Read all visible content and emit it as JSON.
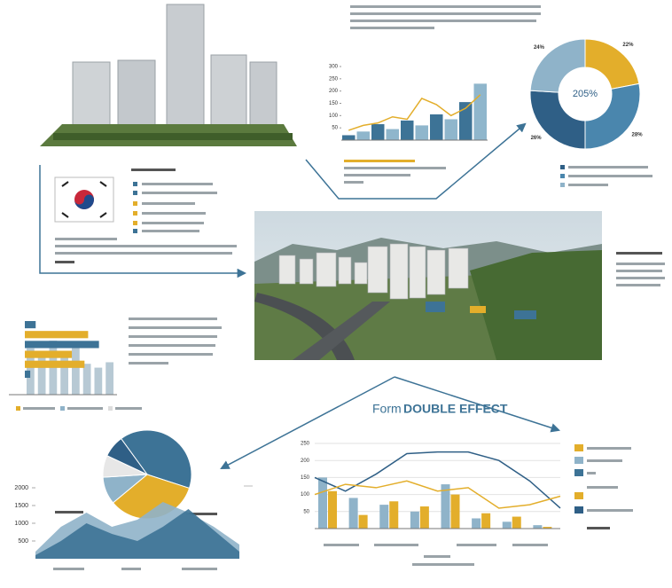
{
  "title_prefix": "Form",
  "title": "DOUBLE EFFECT",
  "top_chart": {
    "ylim": [
      0,
      300
    ],
    "yticks": [
      50,
      100,
      150,
      200,
      250,
      300
    ],
    "bars": [
      20,
      35,
      65,
      45,
      80,
      60,
      105,
      85,
      155,
      230
    ],
    "bar_colors": [
      "#3d7396",
      "#8fb6cc"
    ],
    "line": [
      40,
      60,
      70,
      95,
      85,
      170,
      145,
      100,
      130,
      185
    ],
    "line_color": "#e3ae2b"
  },
  "donut": {
    "center_label": "205%",
    "values": [
      22,
      28,
      26,
      24
    ],
    "value_labels": [
      "22%",
      "28%",
      "26%",
      "24%"
    ],
    "colors": [
      "#e3ae2b",
      "#4a86ad",
      "#2f5f86",
      "#8fb3c9"
    ]
  },
  "hbar_chart": {
    "xlim": [
      0,
      100
    ],
    "values": [
      12,
      70,
      82,
      52,
      66,
      6
    ],
    "colors": [
      "#3d7396",
      "#e3ae2b",
      "#3d7396",
      "#e3ae2b",
      "#e3ae2b",
      "#3d7396"
    ],
    "columns": [
      60,
      55,
      70,
      48,
      62,
      40,
      35,
      42
    ],
    "column_color": "#b7c9d4"
  },
  "pie": {
    "values": [
      40,
      34,
      10,
      8,
      8
    ],
    "colors": [
      "#3d7396",
      "#e3ae2b",
      "#8fb3c9",
      "#e7e7e7",
      "#2f5f86"
    ]
  },
  "area_chart": {
    "ylim": [
      0,
      2000
    ],
    "yticks": [
      500,
      1000,
      1500,
      2000
    ],
    "series": [
      {
        "color": "#8fb3c9",
        "values": [
          200,
          900,
          1300,
          900,
          1100,
          1600,
          1300,
          900,
          400
        ]
      },
      {
        "color": "#3d7396",
        "values": [
          100,
          500,
          1000,
          700,
          500,
          900,
          1400,
          800,
          200
        ]
      }
    ]
  },
  "combo_chart": {
    "ylim": [
      0,
      250
    ],
    "yticks": [
      50,
      100,
      150,
      200,
      250
    ],
    "bar_series": [
      {
        "color": "#8fb3c9",
        "values": [
          150,
          90,
          70,
          50,
          130,
          30,
          20,
          10
        ]
      },
      {
        "color": "#e3ae2b",
        "values": [
          110,
          40,
          80,
          65,
          100,
          45,
          35,
          5
        ]
      }
    ],
    "line_series": [
      {
        "color": "#2f5f86",
        "values": [
          150,
          110,
          160,
          220,
          225,
          225,
          200,
          140,
          60
        ]
      },
      {
        "color": "#e3ae2b",
        "values": [
          100,
          130,
          120,
          140,
          110,
          120,
          60,
          70,
          95
        ]
      }
    ]
  }
}
